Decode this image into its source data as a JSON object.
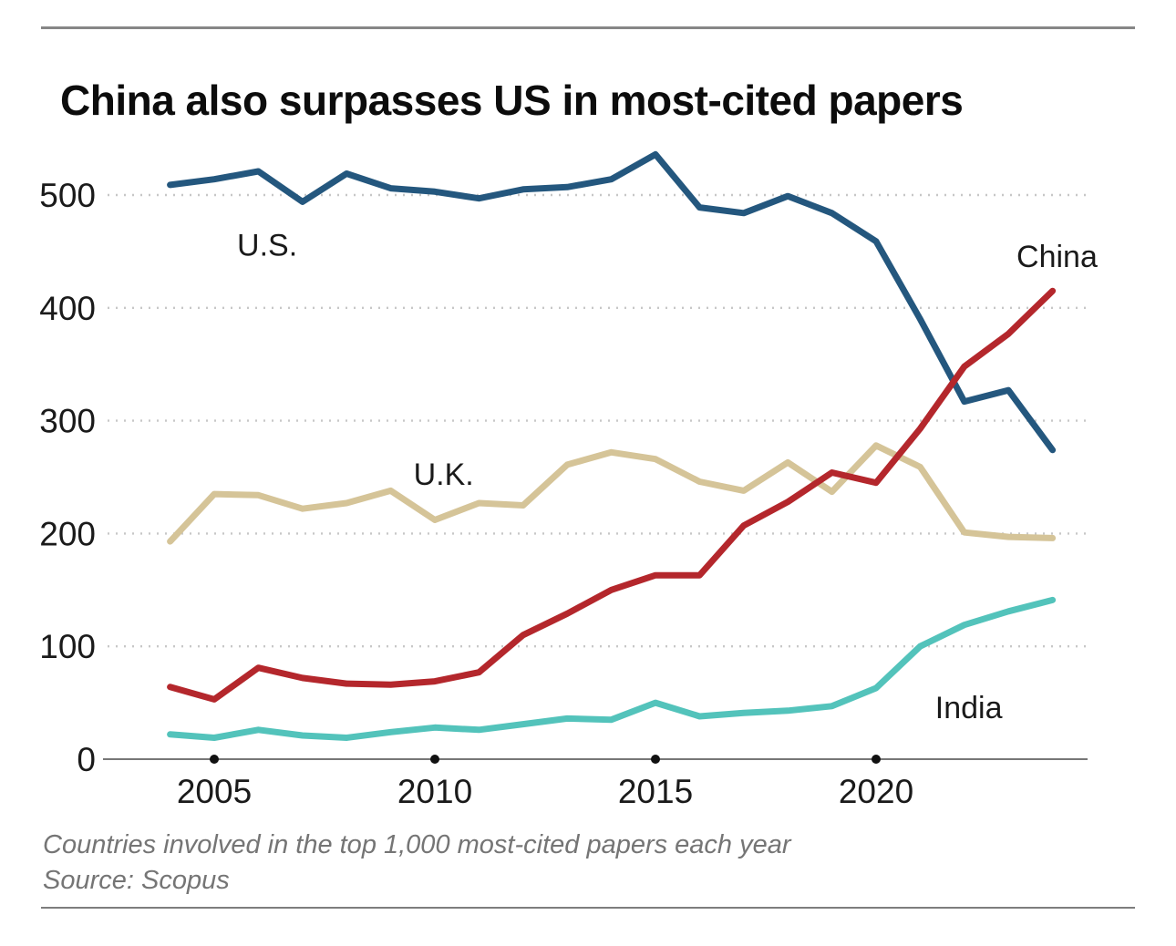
{
  "title": "China also surpasses US in most-cited papers",
  "footer": {
    "note": "Countries involved in the top 1,000 most-cited papers each year",
    "source": "Source: Scopus"
  },
  "chart_data": {
    "type": "line",
    "title": "China also surpasses US in most-cited papers",
    "xlabel": "",
    "ylabel": "",
    "x": [
      2004,
      2005,
      2006,
      2007,
      2008,
      2009,
      2010,
      2011,
      2012,
      2013,
      2014,
      2015,
      2016,
      2017,
      2018,
      2019,
      2020,
      2021,
      2022,
      2023,
      2024
    ],
    "xlim": [
      2003.5,
      2025.8
    ],
    "ylim": [
      0,
      560
    ],
    "xticks": [
      "2005",
      "2010",
      "2015",
      "2020"
    ],
    "xtick_years": [
      2005,
      2010,
      2015,
      2020
    ],
    "yticks": [
      "0",
      "100",
      "200",
      "300",
      "400",
      "500"
    ],
    "ytick_values": [
      0,
      100,
      200,
      300,
      400,
      500
    ],
    "grid": "horizontal-dotted",
    "legend_position": "inline-labels",
    "series": [
      {
        "name": "U.K.",
        "color": "#d5c498",
        "values": [
          193,
          235,
          234,
          222,
          227,
          238,
          212,
          227,
          225,
          261,
          272,
          266,
          246,
          238,
          263,
          237,
          278,
          259,
          201,
          197,
          196
        ]
      },
      {
        "name": "U.S.",
        "color": "#24577e",
        "values": [
          509,
          514,
          521,
          494,
          519,
          506,
          503,
          497,
          505,
          507,
          514,
          536,
          489,
          484,
          499,
          484,
          459,
          390,
          317,
          327,
          274
        ]
      },
      {
        "name": "India",
        "color": "#53c3bb",
        "values": [
          22,
          19,
          26,
          21,
          19,
          24,
          28,
          26,
          31,
          36,
          35,
          50,
          38,
          41,
          43,
          47,
          63,
          100,
          119,
          131,
          141
        ]
      },
      {
        "name": "China",
        "color": "#b4272c",
        "values": [
          64,
          53,
          81,
          72,
          67,
          66,
          69,
          77,
          110,
          129,
          150,
          163,
          163,
          207,
          228,
          254,
          245,
          293,
          348,
          377,
          415
        ]
      }
    ],
    "annotations": [
      {
        "text": "U.S.",
        "year": 2006.2,
        "value": 456
      },
      {
        "text": "U.K.",
        "year": 2010.2,
        "value": 253
      },
      {
        "text": "China",
        "year": 2024.1,
        "value": 446
      },
      {
        "text": "India",
        "year": 2022.1,
        "value": 46
      }
    ],
    "source": "Source: Scopus",
    "caption": "Countries involved in the top 1,000 most-cited papers each year"
  },
  "style": {
    "grid_color": "#c7c7c7",
    "axis_color": "#777777",
    "tick_dot_color": "#111111",
    "tick_label_color": "#1a1a1a",
    "annotation_color": "#1a1a1a"
  }
}
